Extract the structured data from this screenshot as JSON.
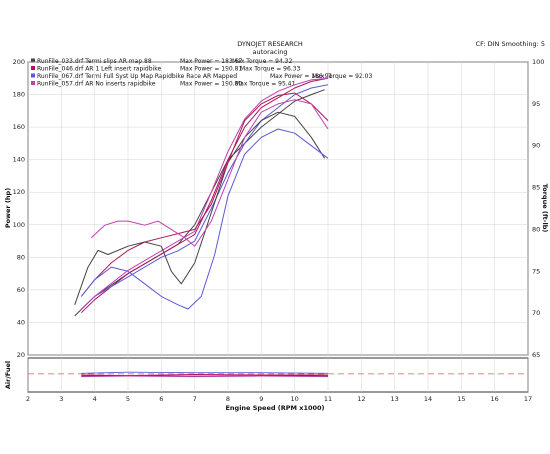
{
  "header": {
    "title": "DYNOJET RESEARCH",
    "subtitle": "autoracing",
    "correction": "CF: DIN  Smoothing: 5"
  },
  "legend": [
    {
      "file": "RunFile_033.drf Termi slips AR map 88",
      "power": "Max Power = 183.67",
      "torque": "Max Torque = 94.32",
      "color": "#444444"
    },
    {
      "file": "RunFile_046.drf AR 1 Left insert rapidbike",
      "power": "Max Power = 190.81",
      "torque": "Max Torque = 96.33",
      "color": "#b0155a"
    },
    {
      "file": "RunFile_067.drf Termi Full Syst Up Map Rapidbike Race AR Mapped",
      "power": "Max Power = 186.91",
      "torque": "Max Torque = 92.03",
      "color": "#5a5ad6"
    },
    {
      "file": "RunFile_057.drf AR No inserts rapidbike",
      "power": "Max Power = 190.80",
      "torque": "Max Torque = 95.41",
      "color": "#c040b0"
    }
  ],
  "chart_data": [
    {
      "type": "line",
      "xlabel": "Engine Speed (RPM x1000)",
      "ylabel": "Power (hp)",
      "ylabel_right": "Torque (ft-lb)",
      "xlim": [
        2,
        17
      ],
      "ylim": [
        20,
        200
      ],
      "ylim_right": [
        65,
        100
      ],
      "xticks": [
        "2",
        "3",
        "4",
        "5",
        "6",
        "7",
        "8",
        "9",
        "10",
        "11",
        "12",
        "13",
        "14",
        "15",
        "16",
        "17"
      ],
      "yticks": [
        "20",
        "40",
        "60",
        "80",
        "100",
        "120",
        "140",
        "160",
        "180",
        "200"
      ],
      "yticks_right": [
        "65",
        "70",
        "75",
        "80",
        "85",
        "90",
        "95",
        "100"
      ],
      "grid": true,
      "series": [
        {
          "name": "RunFile_033.drf",
          "quantity": "power",
          "color": "#444444",
          "x": [
            3.4,
            4.0,
            4.5,
            5.0,
            5.5,
            6.0,
            6.5,
            7.0,
            7.5,
            8.0,
            8.5,
            9.0,
            9.5,
            10.0,
            10.5,
            10.9
          ],
          "y": [
            44,
            56,
            63,
            70,
            76,
            82,
            88,
            100,
            120,
            140,
            150,
            160,
            168,
            176,
            180,
            183
          ]
        },
        {
          "name": "RunFile_046.drf",
          "quantity": "power",
          "color": "#b0155a",
          "x": [
            3.6,
            4.0,
            4.5,
            5.0,
            5.5,
            6.0,
            6.5,
            7.0,
            7.5,
            8.0,
            8.5,
            9.0,
            9.5,
            10.0,
            10.5,
            11.0
          ],
          "y": [
            46,
            54,
            62,
            70,
            76,
            82,
            88,
            94,
            115,
            140,
            160,
            172,
            178,
            184,
            188,
            190
          ]
        },
        {
          "name": "RunFile_067.drf",
          "quantity": "power",
          "color": "#5a5ad6",
          "x": [
            3.6,
            4.0,
            4.5,
            5.0,
            5.5,
            6.0,
            6.5,
            7.0,
            7.5,
            8.0,
            8.5,
            9.0,
            9.5,
            10.0,
            10.5,
            11.0
          ],
          "y": [
            48,
            56,
            62,
            68,
            74,
            80,
            84,
            90,
            110,
            132,
            150,
            164,
            172,
            180,
            184,
            186
          ]
        },
        {
          "name": "RunFile_057.drf",
          "quantity": "power",
          "color": "#c040b0",
          "x": [
            3.6,
            4.0,
            4.5,
            5.0,
            5.5,
            6.0,
            6.5,
            7.0,
            7.5,
            8.0,
            8.5,
            9.0,
            9.5,
            10.0,
            10.5,
            11.0
          ],
          "y": [
            48,
            56,
            64,
            72,
            78,
            84,
            90,
            96,
            120,
            145,
            165,
            176,
            182,
            186,
            189,
            190
          ]
        },
        {
          "name": "RunFile_033.drf",
          "quantity": "torque",
          "color": "#444444",
          "x": [
            3.4,
            3.8,
            4.1,
            4.4,
            5.0,
            5.5,
            6.0,
            6.3,
            6.6,
            7.0,
            7.5,
            8.0,
            8.5,
            9.0,
            9.5,
            10.0,
            10.5,
            10.9
          ],
          "y": [
            71,
            75.5,
            77.5,
            77,
            78,
            78.5,
            78,
            75,
            73.5,
            76,
            82,
            88,
            91,
            93,
            94,
            93.5,
            91,
            88.5
          ]
        },
        {
          "name": "RunFile_046.drf",
          "quantity": "torque",
          "color": "#b0155a",
          "x": [
            3.6,
            4.0,
            4.5,
            5.0,
            5.5,
            6.0,
            6.5,
            7.0,
            7.5,
            8.0,
            8.5,
            9.0,
            9.5,
            10.0,
            10.5,
            11.0
          ],
          "y": [
            72,
            74,
            76,
            77.5,
            78.5,
            79,
            79.5,
            80,
            83,
            88,
            93,
            95,
            96,
            96.3,
            95,
            93
          ]
        },
        {
          "name": "RunFile_067.drf",
          "quantity": "torque",
          "color": "#5a5ad6",
          "x": [
            3.6,
            4.0,
            4.5,
            5.0,
            5.5,
            6.0,
            6.5,
            6.8,
            7.2,
            7.6,
            8.0,
            8.5,
            9.0,
            9.5,
            10.0,
            10.5,
            11.0
          ],
          "y": [
            72,
            74,
            75.5,
            75,
            73.5,
            72,
            71,
            70.5,
            72,
            77,
            84,
            89,
            91,
            92,
            91.5,
            90,
            88.5
          ]
        },
        {
          "name": "RunFile_057.drf",
          "quantity": "torque",
          "color": "#c040b0",
          "x": [
            3.9,
            4.3,
            4.7,
            5.0,
            5.5,
            5.9,
            6.3,
            6.7,
            7.0,
            7.5,
            8.0,
            8.5,
            9.0,
            9.5,
            10.0,
            10.5,
            11.0
          ],
          "y": [
            79,
            80.5,
            81,
            81,
            80.5,
            81,
            80,
            79,
            78,
            81,
            86,
            91,
            94,
            95,
            95.5,
            95,
            92
          ]
        }
      ]
    },
    {
      "type": "line",
      "ylabel": "Air/Fuel",
      "xlim": [
        2,
        17
      ],
      "reference_line": "dashed",
      "series": [
        {
          "name": "RunFile_033.drf",
          "color": "#444444",
          "x": [
            3.6,
            5,
            7,
            9,
            11
          ],
          "y": [
            12.8,
            12.9,
            12.8,
            12.9,
            12.8
          ]
        },
        {
          "name": "RunFile_046.drf",
          "color": "#b0155a",
          "x": [
            3.6,
            5,
            7,
            9,
            11
          ],
          "y": [
            13.0,
            12.9,
            13.1,
            13.0,
            13.0
          ]
        },
        {
          "name": "RunFile_067.drf",
          "color": "#5a5ad6",
          "x": [
            3.6,
            5,
            7,
            9,
            11
          ],
          "y": [
            13.3,
            13.5,
            13.4,
            13.4,
            13.3
          ]
        },
        {
          "name": "RunFile_057.drf",
          "color": "#c040b0",
          "x": [
            3.6,
            5,
            7,
            9,
            11
          ],
          "y": [
            12.7,
            12.8,
            12.7,
            12.8,
            12.7
          ]
        }
      ]
    }
  ]
}
